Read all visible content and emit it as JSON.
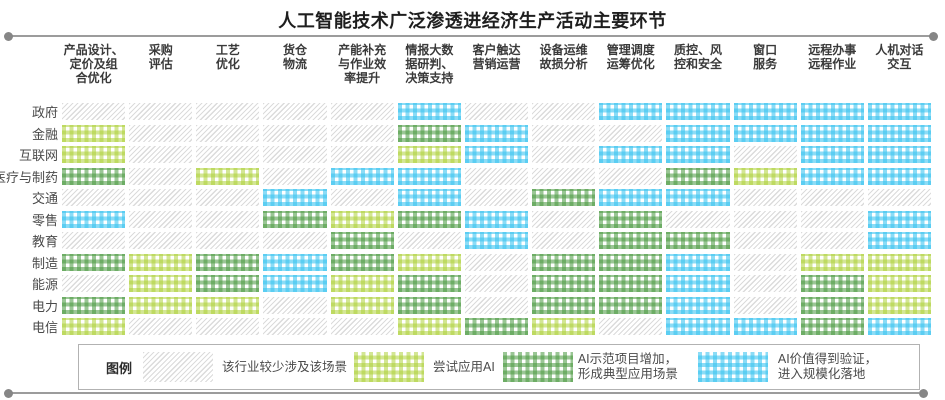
{
  "chart_data": {
    "type": "heatmap",
    "title": "人工智能技术广泛渗透进经济生产活动主要环节",
    "columns": [
      "产品设计、\n定价及组\n合优化",
      "采购\n评估",
      "工艺\n优化",
      "货仓\n物流",
      "产能补充\n与作业效\n率提升",
      "情报大数\n据研判、\n决策支持",
      "客户触达\n营销运营",
      "设备运维\n故损分析",
      "管理调度\n运筹优化",
      "质控、风\n控和安全",
      "窗口\n服务",
      "远程办事\n远程作业",
      "人机对话\n交互"
    ],
    "rows": [
      {
        "label": "政府",
        "levels": [
          0,
          0,
          0,
          0,
          0,
          3,
          0,
          0,
          3,
          3,
          3,
          3,
          3
        ]
      },
      {
        "label": "金融",
        "levels": [
          1,
          0,
          0,
          0,
          0,
          2,
          3,
          0,
          0,
          3,
          3,
          3,
          3
        ]
      },
      {
        "label": "互联网",
        "levels": [
          1,
          0,
          0,
          0,
          0,
          1,
          3,
          0,
          3,
          3,
          0,
          3,
          3
        ]
      },
      {
        "label": "医疗与制药",
        "levels": [
          2,
          0,
          1,
          0,
          3,
          3,
          0,
          0,
          0,
          2,
          1,
          3,
          3
        ]
      },
      {
        "label": "交通",
        "levels": [
          0,
          0,
          0,
          3,
          0,
          3,
          0,
          2,
          3,
          3,
          0,
          0,
          0
        ]
      },
      {
        "label": "零售",
        "levels": [
          3,
          0,
          0,
          2,
          1,
          2,
          3,
          0,
          2,
          0,
          0,
          0,
          3
        ]
      },
      {
        "label": "教育",
        "levels": [
          0,
          0,
          0,
          0,
          2,
          0,
          3,
          0,
          2,
          2,
          0,
          0,
          3
        ]
      },
      {
        "label": "制造",
        "levels": [
          2,
          1,
          2,
          3,
          2,
          1,
          0,
          2,
          2,
          3,
          0,
          1,
          1
        ]
      },
      {
        "label": "能源",
        "levels": [
          0,
          1,
          2,
          3,
          1,
          2,
          0,
          2,
          2,
          3,
          0,
          2,
          1
        ]
      },
      {
        "label": "电力",
        "levels": [
          2,
          1,
          1,
          0,
          1,
          2,
          0,
          2,
          2,
          3,
          0,
          2,
          1
        ]
      },
      {
        "label": "电信",
        "levels": [
          1,
          0,
          0,
          0,
          0,
          1,
          2,
          1,
          0,
          3,
          3,
          2,
          3
        ]
      }
    ],
    "level_colors": {
      "0": "#d9d9d9",
      "1": "#abcf32",
      "2": "#48983e",
      "3": "#38c3f0"
    }
  },
  "legend": {
    "title": "图例",
    "items": [
      {
        "level": 0,
        "label": "该行业较少涉及该场景"
      },
      {
        "level": 1,
        "label": "尝试应用AI"
      },
      {
        "level": 2,
        "label": "AI示范项目增加，\n形成典型应用场景"
      },
      {
        "level": 3,
        "label": "AI价值得到验证，\n进入规模化落地"
      }
    ]
  }
}
